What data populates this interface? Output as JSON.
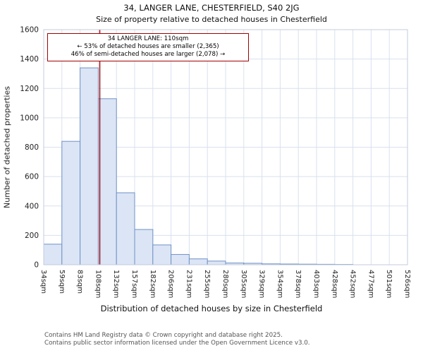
{
  "title": "34, LANGER LANE, CHESTERFIELD, S40 2JG",
  "subtitle": "Size of property relative to detached houses in Chesterfield",
  "chart_data": {
    "type": "bar",
    "title": "34, LANGER LANE, CHESTERFIELD, S40 2JG",
    "subtitle": "Size of property relative to detached houses in Chesterfield",
    "xlabel": "Distribution of detached houses by size in Chesterfield",
    "ylabel": "Number of detached properties",
    "categories": [
      "34sqm",
      "59sqm",
      "83sqm",
      "108sqm",
      "132sqm",
      "157sqm",
      "182sqm",
      "206sqm",
      "231sqm",
      "255sqm",
      "280sqm",
      "305sqm",
      "329sqm",
      "354sqm",
      "378sqm",
      "403sqm",
      "428sqm",
      "452sqm",
      "477sqm",
      "501sqm",
      "526sqm"
    ],
    "bin_edges_sqm": [
      34,
      59,
      83,
      108,
      132,
      157,
      182,
      206,
      231,
      255,
      280,
      305,
      329,
      354,
      378,
      403,
      428,
      452,
      477,
      501,
      526
    ],
    "values": [
      140,
      840,
      1340,
      1130,
      490,
      240,
      135,
      70,
      40,
      25,
      12,
      10,
      6,
      5,
      4,
      3,
      2,
      0,
      0,
      0
    ],
    "ylim": [
      0,
      1600
    ],
    "yticks": [
      0,
      200,
      400,
      600,
      800,
      1000,
      1200,
      1400,
      1600
    ],
    "marker_value_sqm": 110,
    "grid": true,
    "legend": "none"
  },
  "annotation": {
    "line1": "34 LANGER LANE: 110sqm",
    "line2": "← 53% of detached houses are smaller (2,365)",
    "line3": "46% of semi-detached houses are larger (2,078) →"
  },
  "footer": {
    "line1": "Contains HM Land Registry data © Crown copyright and database right 2025.",
    "line2": "Contains public sector information licensed under the Open Government Licence v3.0."
  },
  "colors": {
    "bar_fill": "#dbe5f6",
    "bar_stroke": "#7191c4",
    "marker": "#a40000",
    "grid": "#d9e0ee",
    "plot_border": "#c3cbdd",
    "annotation_border": "#a40000",
    "tick_text": "#222222",
    "footer_text": "#555555"
  }
}
